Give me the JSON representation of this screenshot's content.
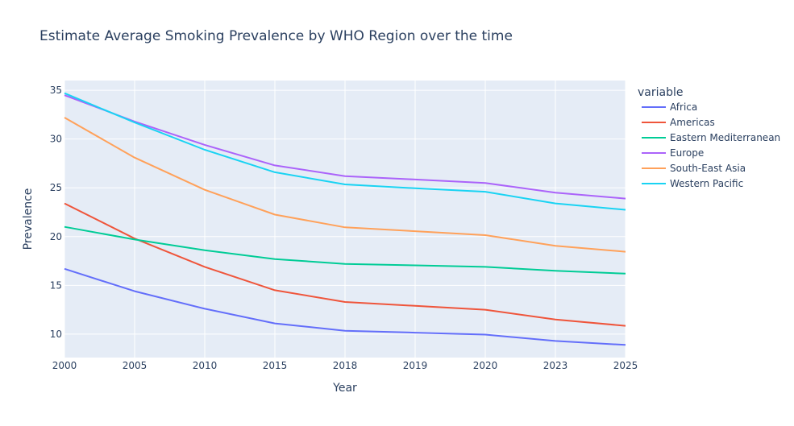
{
  "chart_data": {
    "type": "line",
    "title": "Estimate Average Smoking Prevalence by WHO Region over the time",
    "xlabel": "Year",
    "ylabel": "Prevalence",
    "categories": [
      "2000",
      "2005",
      "2010",
      "2015",
      "2018",
      "2019",
      "2020",
      "2023",
      "2025"
    ],
    "ylim": [
      7.6,
      36
    ],
    "yticks": [
      10,
      15,
      20,
      25,
      30,
      35
    ],
    "grid": true,
    "legend": {
      "title": "variable",
      "position": "right"
    },
    "series": [
      {
        "name": "Africa",
        "color": "#636efa",
        "values": [
          16.7,
          14.4,
          12.6,
          11.1,
          10.35,
          10.15,
          9.95,
          9.3,
          8.9
        ]
      },
      {
        "name": "Americas",
        "color": "#ef553b",
        "values": [
          23.4,
          19.8,
          16.9,
          14.5,
          13.3,
          12.9,
          12.5,
          11.5,
          10.85
        ]
      },
      {
        "name": "Eastern Mediterranean",
        "color": "#00cc96",
        "values": [
          21.0,
          19.7,
          18.6,
          17.7,
          17.2,
          17.05,
          16.9,
          16.5,
          16.2
        ]
      },
      {
        "name": "Europe",
        "color": "#ab63fa",
        "values": [
          34.5,
          31.8,
          29.4,
          27.3,
          26.2,
          25.85,
          25.5,
          24.5,
          23.9
        ]
      },
      {
        "name": "South-East Asia",
        "color": "#ffa15a",
        "values": [
          32.2,
          28.1,
          24.8,
          22.25,
          20.95,
          20.55,
          20.15,
          19.05,
          18.45
        ]
      },
      {
        "name": "Western Pacific",
        "color": "#19d3f3",
        "values": [
          34.7,
          31.7,
          28.9,
          26.6,
          25.35,
          24.95,
          24.6,
          23.4,
          22.75
        ]
      }
    ]
  }
}
